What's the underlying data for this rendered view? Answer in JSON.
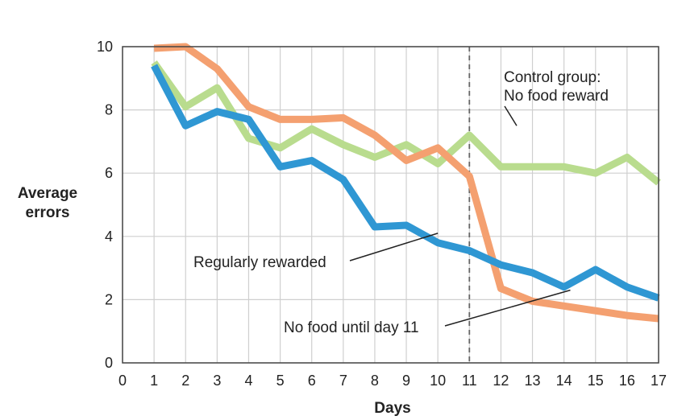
{
  "chart_data": {
    "type": "line",
    "xlabel": "Days",
    "ylabel_lines": [
      "Average",
      "errors"
    ],
    "xlim": [
      0,
      17
    ],
    "ylim": [
      0,
      10
    ],
    "x_ticks": [
      0,
      1,
      2,
      3,
      4,
      5,
      6,
      7,
      8,
      9,
      10,
      11,
      12,
      13,
      14,
      15,
      16,
      17
    ],
    "y_ticks": [
      0,
      2,
      4,
      6,
      8,
      10
    ],
    "grid": true,
    "reference_line": {
      "x": 11,
      "style": "dashed"
    },
    "series": [
      {
        "key": "control",
        "color": "#b9dc8e",
        "x": [
          1,
          2,
          3,
          4,
          5,
          6,
          7,
          8,
          9,
          10,
          11,
          12,
          13,
          14,
          15,
          16,
          17
        ],
        "values": [
          9.5,
          8.1,
          8.7,
          7.1,
          6.8,
          7.4,
          6.9,
          6.5,
          6.9,
          6.3,
          7.2,
          6.2,
          6.2,
          6.2,
          6.0,
          6.5,
          5.7
        ]
      },
      {
        "key": "delayed",
        "color": "#f4a070",
        "x": [
          1,
          2,
          3,
          4,
          5,
          6,
          7,
          8,
          9,
          10,
          11,
          12,
          13,
          14,
          15,
          16,
          17
        ],
        "values": [
          9.95,
          10.0,
          9.3,
          8.1,
          7.7,
          7.7,
          7.75,
          7.2,
          6.4,
          6.8,
          5.9,
          2.35,
          1.95,
          1.8,
          1.65,
          1.5,
          1.4
        ]
      },
      {
        "key": "rewarded",
        "color": "#2f97d3",
        "x": [
          1,
          2,
          3,
          4,
          5,
          6,
          7,
          8,
          9,
          10,
          11,
          12,
          13,
          14,
          15,
          16,
          17
        ],
        "values": [
          9.4,
          7.5,
          7.95,
          7.7,
          6.2,
          6.4,
          5.8,
          4.3,
          4.35,
          3.8,
          3.55,
          3.1,
          2.85,
          2.4,
          2.95,
          2.4,
          2.05
        ]
      }
    ],
    "annotations": [
      {
        "series": "control",
        "lines": [
          "Control group:",
          "No food reward"
        ],
        "point": [
          12.5,
          7.5
        ]
      },
      {
        "series": "rewarded",
        "lines": [
          "Regularly rewarded"
        ],
        "point": [
          10.0,
          4.1
        ]
      },
      {
        "series": "delayed",
        "lines": [
          "No food until day 11"
        ],
        "point": [
          14.2,
          2.3
        ]
      }
    ]
  }
}
